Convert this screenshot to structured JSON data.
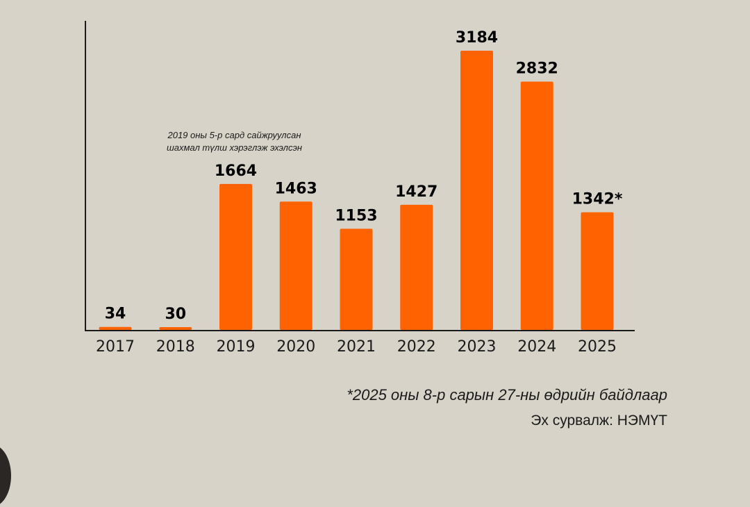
{
  "chart_data": {
    "type": "bar",
    "categories": [
      "2017",
      "2018",
      "2019",
      "2020",
      "2021",
      "2022",
      "2023",
      "2024",
      "2025"
    ],
    "values": [
      34,
      30,
      1664,
      1463,
      1153,
      1427,
      3184,
      2832,
      1342
    ],
    "data_labels": [
      "34",
      "30",
      "1664",
      "1463",
      "1153",
      "1427",
      "3184",
      "2832",
      "1342*"
    ],
    "title": "",
    "xlabel": "",
    "ylabel": "",
    "ylim": [
      0,
      3500
    ],
    "grid": false,
    "bar_color": "#ff6200",
    "axis_color": "#1a1a1a",
    "annotation": {
      "line1": "2019 оны 5-р сард сайжруулсан",
      "line2": "шахмал түлш хэрэглэж эхэлсэн"
    },
    "footnote": "*2025 оны 8-р сарын 27-ны өдрийн байдлаар",
    "source": "Эх сурвалж: НЭМҮТ"
  }
}
